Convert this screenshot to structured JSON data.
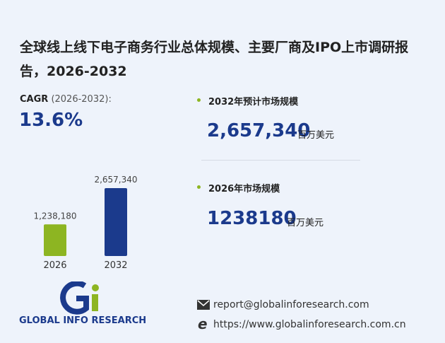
{
  "title": "全球线上线下电子商务行业总体规模、主要厂商及IPO上市调研报告，2026-2032",
  "cagr": {
    "label": "CAGR",
    "period": "(2026-2032):",
    "value": "13.6%"
  },
  "chart_data": {
    "type": "bar",
    "categories": [
      "2026",
      "2032"
    ],
    "values": [
      1238180,
      2657340
    ],
    "value_labels": [
      "1,238,180",
      "2,657,340"
    ],
    "colors": [
      "#8db522",
      "#1b3a8c"
    ]
  },
  "stats": [
    {
      "label": "2032年预计市场规模",
      "value": "2,657,340",
      "unit": "百万美元"
    },
    {
      "label": "2026年市场规模",
      "value": "1238180",
      "unit": "百万美元"
    }
  ],
  "logo": {
    "text": "GLOBAL INFO RESEARCH"
  },
  "contact": {
    "email": "report@globalinforesearch.com",
    "website": "https://www.globalinforesearch.com.cn"
  }
}
